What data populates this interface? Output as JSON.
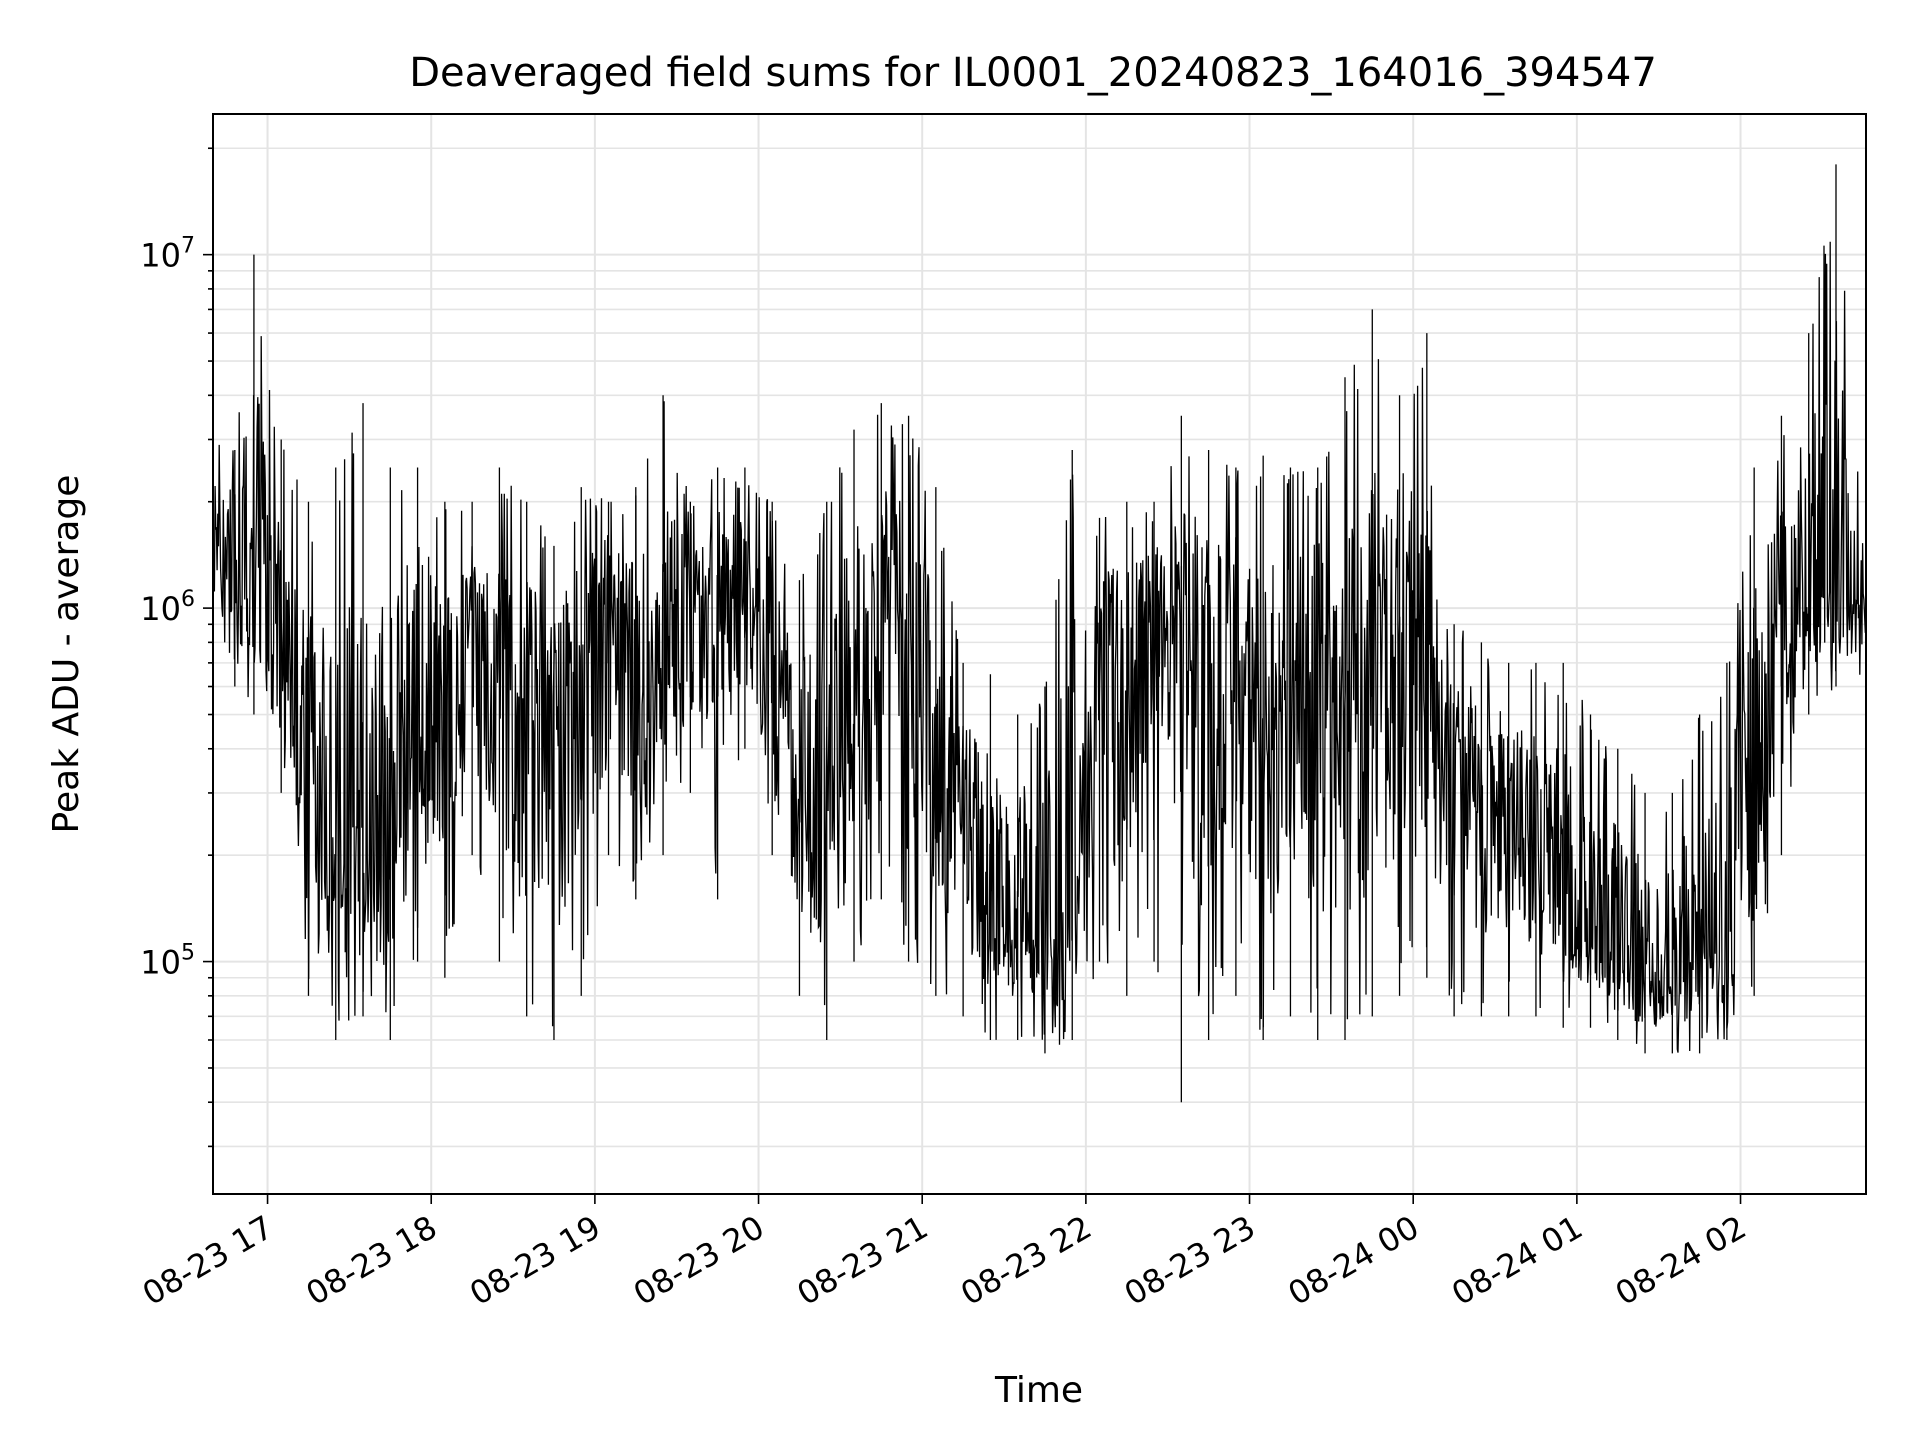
{
  "chart_data": {
    "type": "line",
    "title": "Deaveraged field sums for IL0001_20240823_164016_394547",
    "xlabel": "Time",
    "ylabel": "Peak ADU - average",
    "yscale": "log",
    "ylim": [
      22000,
      25000000
    ],
    "xlim": [
      "2024-08-23 16:40",
      "2024-08-24 02:46"
    ],
    "grid": true,
    "line_color": "#000000",
    "x_ticks": [
      "08-23 17",
      "08-23 18",
      "08-23 19",
      "08-23 20",
      "08-23 21",
      "08-23 22",
      "08-23 23",
      "08-24 00",
      "08-24 01",
      "08-24 02"
    ],
    "x_tick_times": [
      "2024-08-23 17:00",
      "2024-08-23 18:00",
      "2024-08-23 19:00",
      "2024-08-23 20:00",
      "2024-08-23 21:00",
      "2024-08-23 22:00",
      "2024-08-23 23:00",
      "2024-08-24 00:00",
      "2024-08-24 01:00",
      "2024-08-24 02:00"
    ],
    "y_ticks": [
      {
        "value": 100000,
        "base": "10",
        "exp": "5"
      },
      {
        "value": 1000000,
        "base": "10",
        "exp": "6"
      },
      {
        "value": 10000000,
        "base": "10",
        "exp": "7"
      }
    ],
    "series": [
      {
        "x": [
          "2024-08-23 16:40",
          "2024-08-23 16:48",
          "2024-08-23 16:55",
          "2024-08-23 17:05",
          "2024-08-23 17:15",
          "2024-08-23 17:25",
          "2024-08-23 17:35",
          "2024-08-23 17:45",
          "2024-08-23 17:55",
          "2024-08-23 18:05",
          "2024-08-23 18:15",
          "2024-08-23 18:25",
          "2024-08-23 18:35",
          "2024-08-23 18:45",
          "2024-08-23 18:55",
          "2024-08-23 19:05",
          "2024-08-23 19:15",
          "2024-08-23 19:25",
          "2024-08-23 19:35",
          "2024-08-23 19:45",
          "2024-08-23 19:55",
          "2024-08-23 20:05",
          "2024-08-23 20:15",
          "2024-08-23 20:25",
          "2024-08-23 20:35",
          "2024-08-23 20:45",
          "2024-08-23 20:55",
          "2024-08-23 21:05",
          "2024-08-23 21:15",
          "2024-08-23 21:25",
          "2024-08-23 21:35",
          "2024-08-23 21:45",
          "2024-08-23 21:55",
          "2024-08-23 22:05",
          "2024-08-23 22:15",
          "2024-08-23 22:25",
          "2024-08-23 22:35",
          "2024-08-23 22:45",
          "2024-08-23 22:55",
          "2024-08-23 23:05",
          "2024-08-23 23:15",
          "2024-08-23 23:25",
          "2024-08-23 23:35",
          "2024-08-23 23:45",
          "2024-08-23 23:55",
          "2024-08-24 00:05",
          "2024-08-24 00:15",
          "2024-08-24 00:25",
          "2024-08-24 00:35",
          "2024-08-24 00:45",
          "2024-08-24 00:55",
          "2024-08-24 01:05",
          "2024-08-24 01:15",
          "2024-08-24 01:25",
          "2024-08-24 01:35",
          "2024-08-24 01:45",
          "2024-08-24 01:55",
          "2024-08-24 02:05",
          "2024-08-24 02:15",
          "2024-08-24 02:25",
          "2024-08-24 02:35",
          "2024-08-24 02:46"
        ],
        "y": [
          1300000,
          1500000,
          1100000,
          700000,
          250000,
          150000,
          200000,
          180000,
          900000,
          300000,
          1000000,
          700000,
          500000,
          400000,
          700000,
          1100000,
          500000,
          600000,
          1000000,
          1100000,
          1000000,
          700000,
          300000,
          250000,
          500000,
          900000,
          700000,
          350000,
          250000,
          150000,
          130000,
          110000,
          130000,
          700000,
          600000,
          800000,
          700000,
          800000,
          700000,
          300000,
          600000,
          700000,
          400000,
          700000,
          1000000,
          800000,
          400000,
          300000,
          250000,
          200000,
          150000,
          120000,
          100000,
          90000,
          90000,
          100000,
          110000,
          300000,
          700000,
          1200000,
          1100000,
          1000000
        ],
        "min": [
          900000,
          600000,
          500000,
          300000,
          80000,
          60000,
          70000,
          60000,
          100000,
          90000,
          200000,
          100000,
          70000,
          60000,
          80000,
          200000,
          150000,
          200000,
          300000,
          150000,
          400000,
          200000,
          80000,
          60000,
          100000,
          150000,
          100000,
          80000,
          70000,
          60000,
          60000,
          55000,
          60000,
          100000,
          80000,
          100000,
          40000,
          60000,
          80000,
          60000,
          70000,
          60000,
          60000,
          70000,
          80000,
          90000,
          70000,
          70000,
          70000,
          70000,
          65000,
          65000,
          60000,
          55000,
          55000,
          55000,
          60000,
          80000,
          200000,
          500000,
          600000,
          600000
        ],
        "max": [
          3000000,
          2800000,
          10000000,
          3000000,
          2000000,
          2500000,
          3800000,
          2500000,
          2500000,
          2000000,
          2000000,
          2500000,
          2000000,
          1500000,
          2200000,
          2000000,
          2200000,
          4000000,
          2000000,
          2500000,
          2500000,
          2000000,
          1200000,
          2000000,
          3200000,
          3800000,
          3500000,
          2200000,
          700000,
          650000,
          500000,
          600000,
          2800000,
          1800000,
          2000000,
          2000000,
          3500000,
          2800000,
          2500000,
          2700000,
          2500000,
          2500000,
          4500000,
          7000000,
          4000000,
          6000000,
          900000,
          800000,
          700000,
          700000,
          700000,
          500000,
          400000,
          300000,
          300000,
          500000,
          700000,
          2500000,
          3500000,
          6000000,
          18000000,
          1200000
        ]
      }
    ]
  }
}
